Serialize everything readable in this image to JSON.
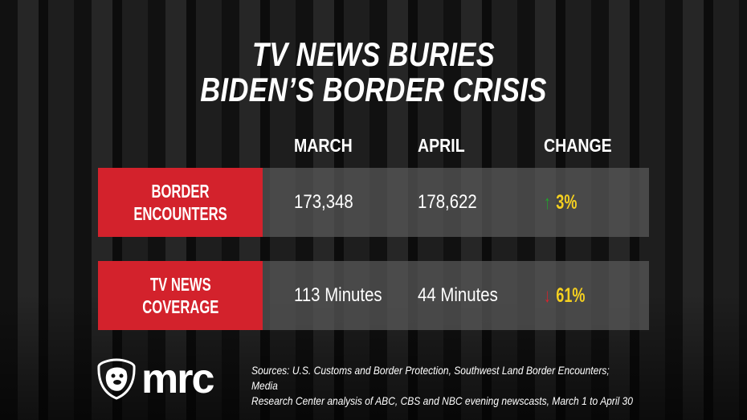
{
  "title": {
    "line1": "TV NEWS BURIES",
    "line2": "BIDEN’S BORDER CRISIS"
  },
  "columns": [
    "MARCH",
    "APRIL",
    "CHANGE"
  ],
  "rows": [
    {
      "label_line1": "BORDER",
      "label_line2": "ENCOUNTERS",
      "march": "173,348",
      "april": "178,622",
      "change": "3%",
      "direction": "up",
      "arrow": "↑"
    },
    {
      "label_line1": "TV NEWS",
      "label_line2": "COVERAGE",
      "march": "113 Minutes",
      "april": "44 Minutes",
      "change": "61%",
      "direction": "down",
      "arrow": "↓"
    }
  ],
  "colors": {
    "label_bg": "#d3222c",
    "change_text": "#f5d020",
    "up_arrow": "#1fa52a",
    "down_arrow": "#e0202a"
  },
  "logo": {
    "text": "mrc",
    "mascot": "bulldog-shield-icon"
  },
  "sources": {
    "line1": "Sources: U.S. Customs and Border Protection, Southwest Land Border Encounters; Media",
    "line2": "Research Center analysis of ABC, CBS and NBC evening newscasts, March 1 to April 30"
  }
}
